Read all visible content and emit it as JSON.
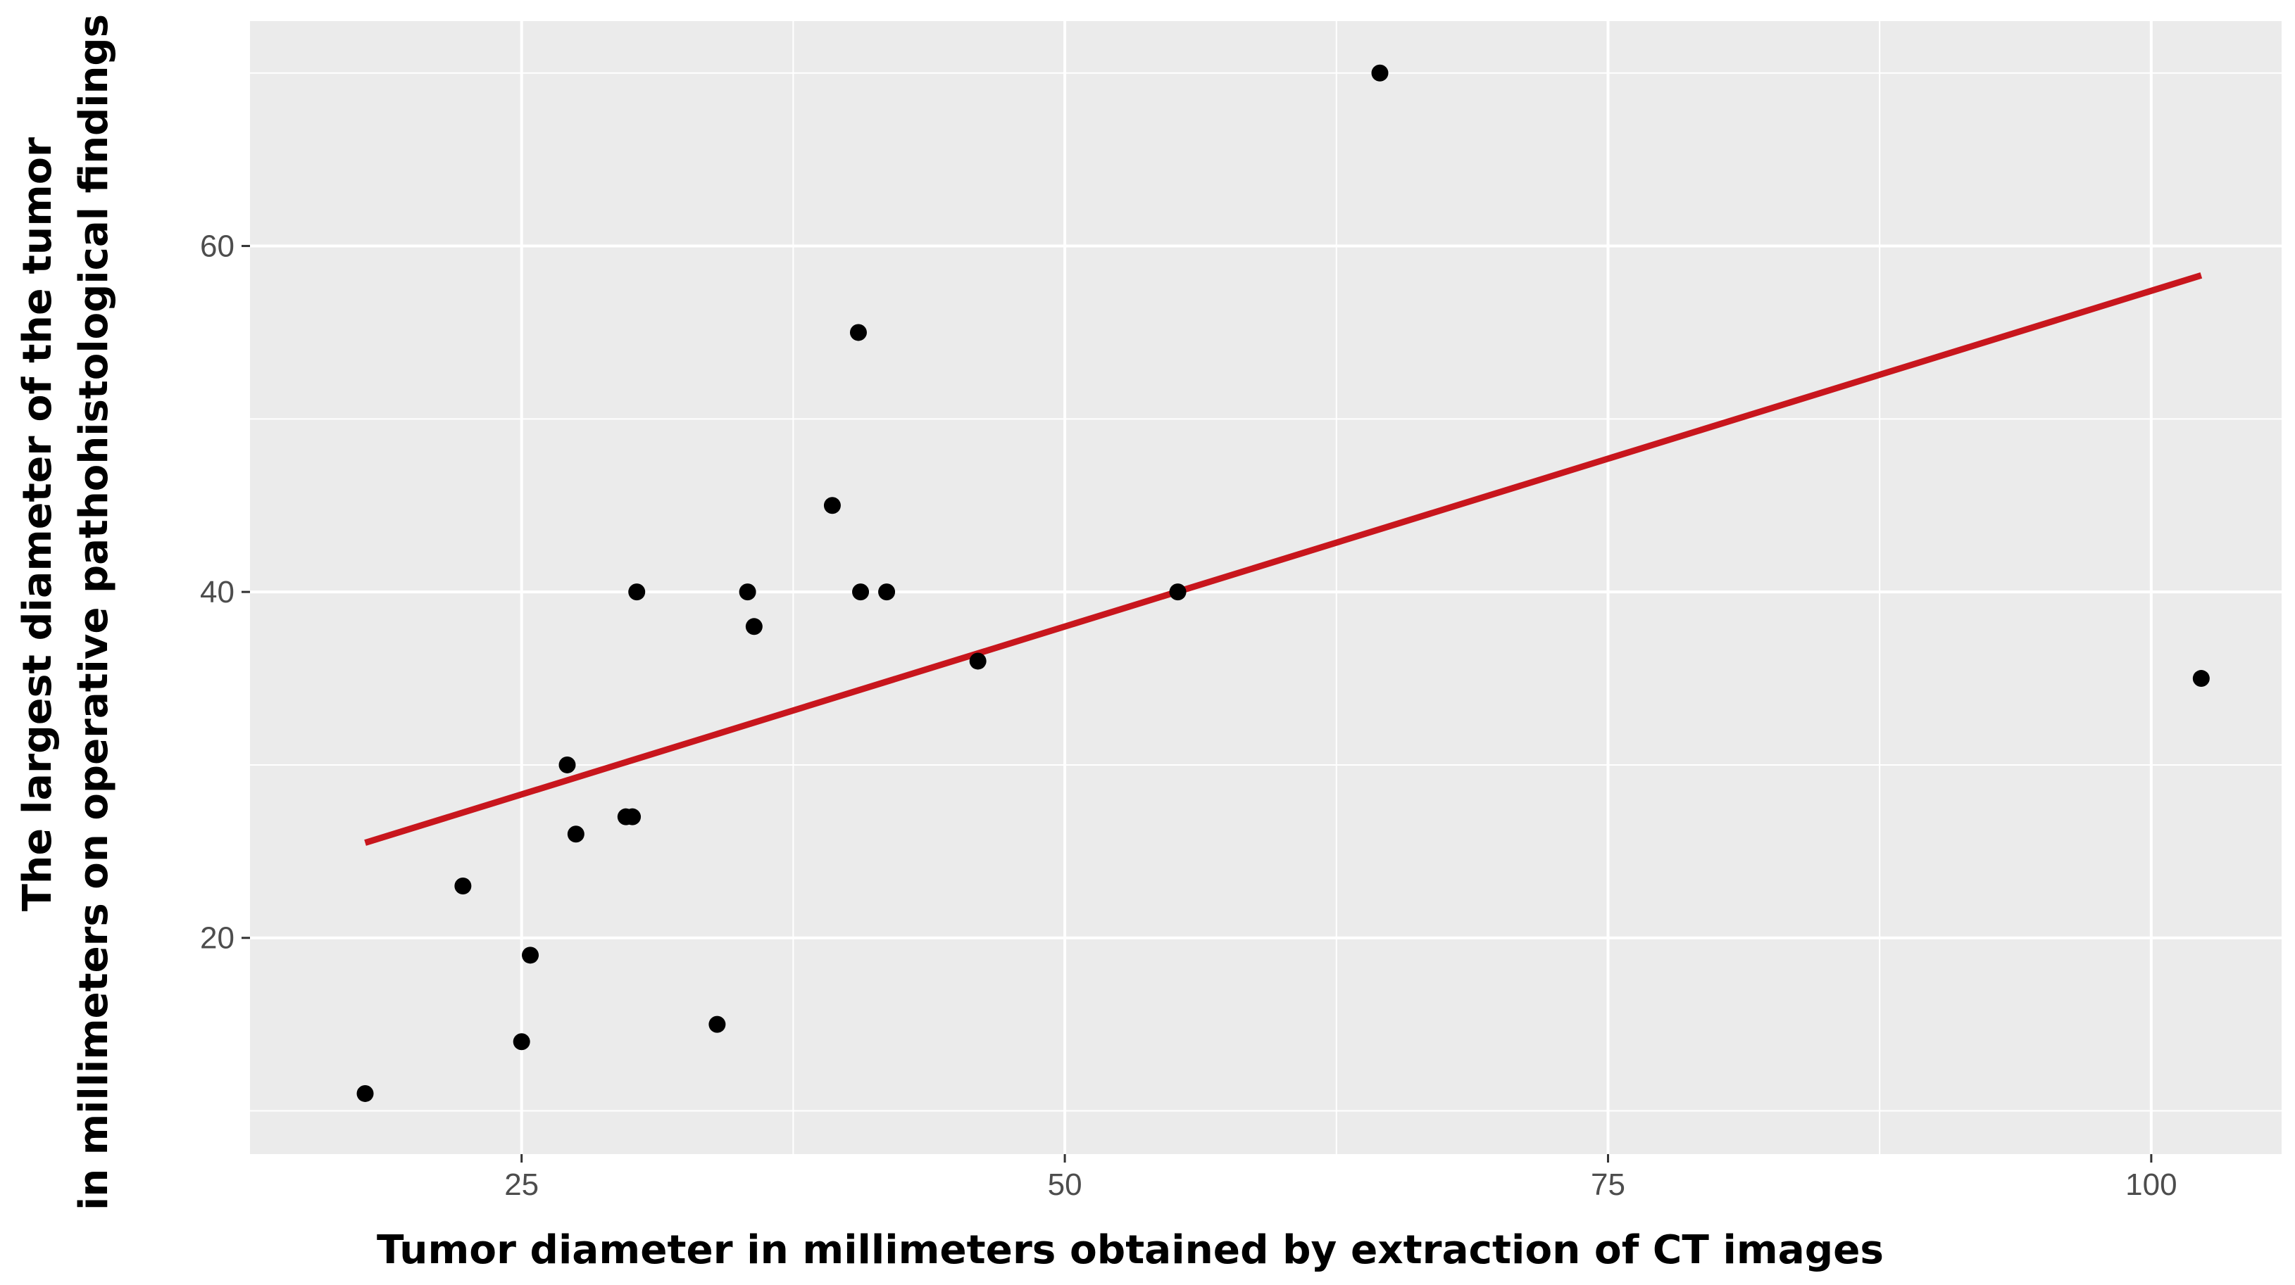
{
  "chart_data": {
    "type": "scatter",
    "title": "",
    "xlabel": "Tumor diameter in millimeters obtained by extraction of CT images",
    "ylabel_lines": [
      "The largest diameter of the tumor",
      "in millimeters on operative pathohistological findings"
    ],
    "xlim": [
      12.5,
      106
    ],
    "ylim": [
      7.5,
      73
    ],
    "x_major_ticks": [
      25,
      50,
      75,
      100
    ],
    "x_minor_ticks": [
      37.5,
      62.5,
      87.5
    ],
    "y_major_ticks": [
      20,
      40,
      60
    ],
    "y_minor_ticks": [
      10,
      30,
      50,
      70
    ],
    "x_tick_labels": [
      "25",
      "50",
      "75",
      "100"
    ],
    "y_tick_labels": [
      "20",
      "40",
      "60"
    ],
    "grid": true,
    "background": "#ebebeb",
    "grid_color": "#ffffff",
    "point_color": "#000000",
    "points": [
      {
        "x": 17.8,
        "y": 11
      },
      {
        "x": 22.3,
        "y": 23
      },
      {
        "x": 25.0,
        "y": 14
      },
      {
        "x": 25.4,
        "y": 19
      },
      {
        "x": 27.1,
        "y": 30
      },
      {
        "x": 27.5,
        "y": 26
      },
      {
        "x": 29.8,
        "y": 27
      },
      {
        "x": 30.1,
        "y": 27
      },
      {
        "x": 30.3,
        "y": 40
      },
      {
        "x": 34.0,
        "y": 15
      },
      {
        "x": 35.4,
        "y": 40
      },
      {
        "x": 35.7,
        "y": 38
      },
      {
        "x": 39.3,
        "y": 45
      },
      {
        "x": 40.5,
        "y": 55
      },
      {
        "x": 40.6,
        "y": 40
      },
      {
        "x": 41.8,
        "y": 40
      },
      {
        "x": 46.0,
        "y": 36
      },
      {
        "x": 55.2,
        "y": 40
      },
      {
        "x": 64.5,
        "y": 70
      },
      {
        "x": 102.3,
        "y": 35
      }
    ],
    "fit_line": {
      "color": "#c8161d",
      "x": [
        17.8,
        102.3
      ],
      "y": [
        25.5,
        58.3
      ]
    }
  }
}
